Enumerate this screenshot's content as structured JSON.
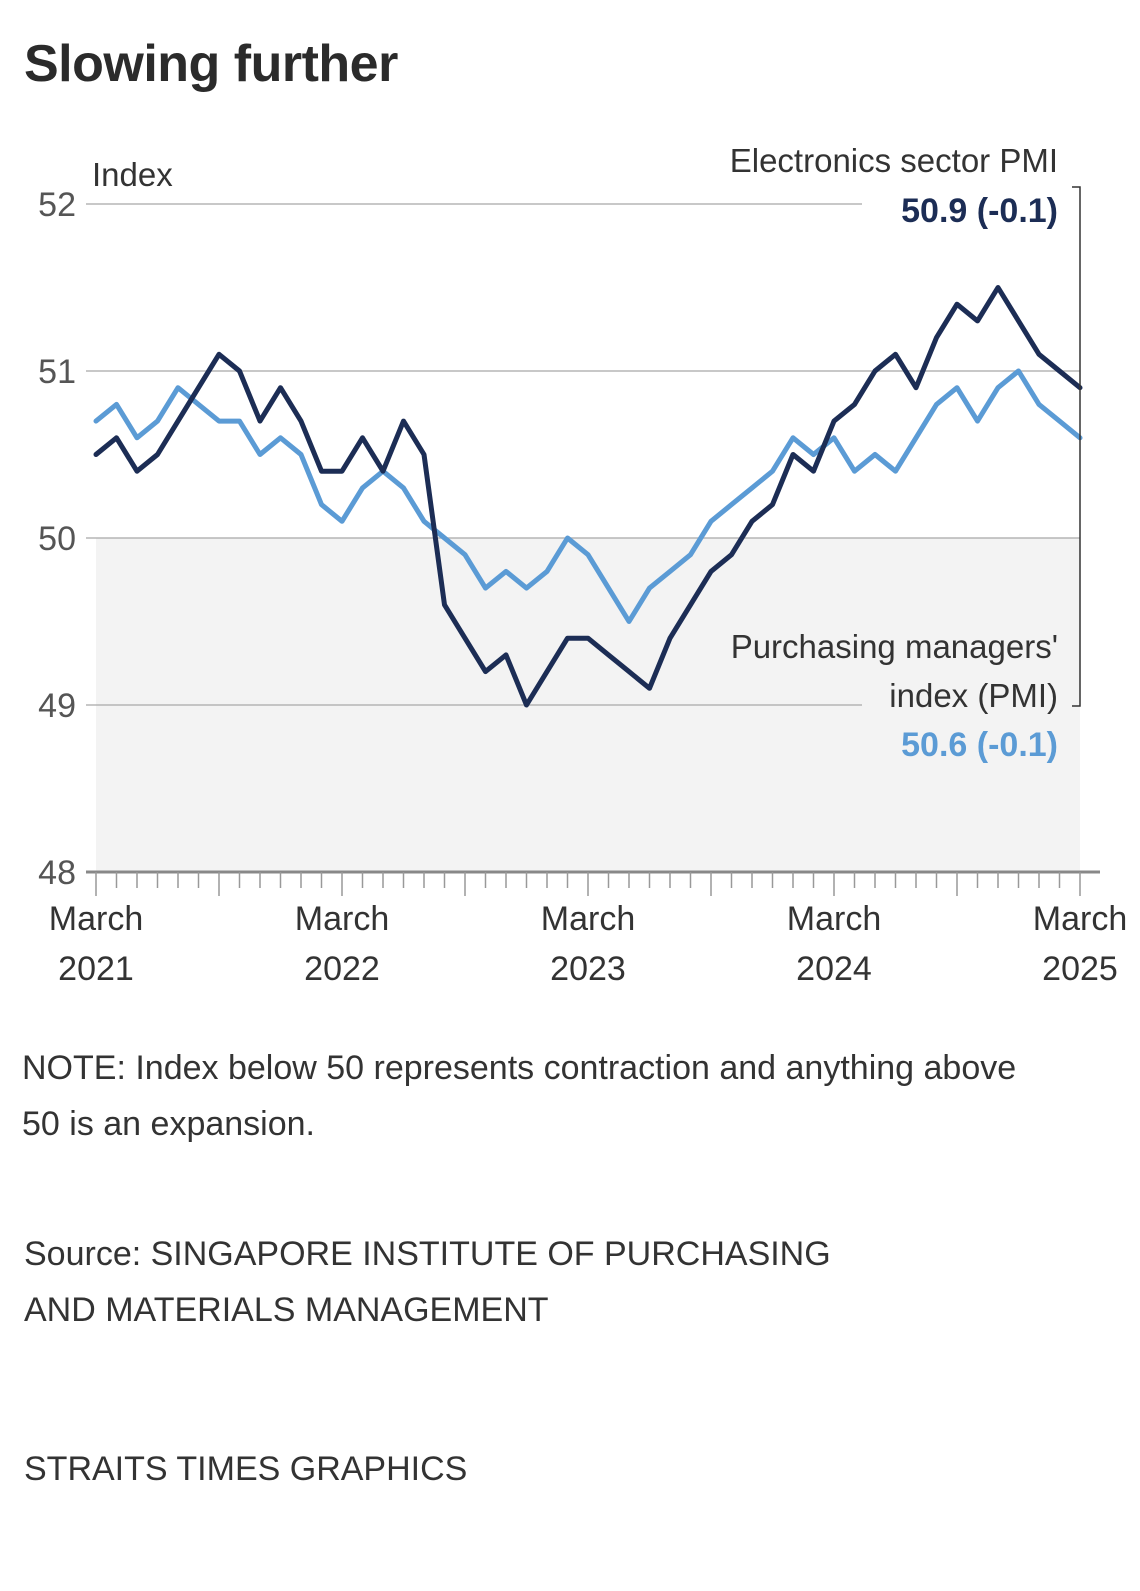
{
  "header": {
    "title": "Slowing further"
  },
  "chart_data": {
    "type": "line",
    "title": "Slowing further",
    "ylabel": "Index",
    "xlabel": "",
    "ylim": [
      48,
      52
    ],
    "yticks": [
      48,
      49,
      50,
      51,
      52
    ],
    "grid": true,
    "shaded_region": {
      "from": 48,
      "to": 50,
      "meaning": "contraction"
    },
    "x": [
      "Mar 2021",
      "Apr 2021",
      "May 2021",
      "Jun 2021",
      "Jul 2021",
      "Aug 2021",
      "Sep 2021",
      "Oct 2021",
      "Nov 2021",
      "Dec 2021",
      "Jan 2022",
      "Feb 2022",
      "Mar 2022",
      "Apr 2022",
      "May 2022",
      "Jun 2022",
      "Jul 2022",
      "Aug 2022",
      "Sep 2022",
      "Oct 2022",
      "Nov 2022",
      "Dec 2022",
      "Jan 2023",
      "Feb 2023",
      "Mar 2023",
      "Apr 2023",
      "May 2023",
      "Jun 2023",
      "Jul 2023",
      "Aug 2023",
      "Sep 2023",
      "Oct 2023",
      "Nov 2023",
      "Dec 2023",
      "Jan 2024",
      "Feb 2024",
      "Mar 2024",
      "Apr 2024",
      "May 2024",
      "Jun 2024",
      "Jul 2024",
      "Aug 2024",
      "Sep 2024",
      "Oct 2024",
      "Nov 2024",
      "Dec 2024",
      "Jan 2025",
      "Feb 2025",
      "Mar 2025"
    ],
    "xtick_labels": [
      {
        "index": 0,
        "line1": "March",
        "line2": "2021"
      },
      {
        "index": 12,
        "line1": "March",
        "line2": "2022"
      },
      {
        "index": 24,
        "line1": "March",
        "line2": "2023"
      },
      {
        "index": 36,
        "line1": "March",
        "line2": "2024"
      },
      {
        "index": 48,
        "line1": "March",
        "line2": "2025"
      }
    ],
    "series": [
      {
        "name": "Electronics sector PMI",
        "color": "#1c2d55",
        "latest_label": "50.9 (-0.1)",
        "values": [
          50.5,
          50.6,
          50.4,
          50.5,
          50.7,
          50.9,
          51.1,
          51.0,
          50.7,
          50.9,
          50.7,
          50.4,
          50.4,
          50.6,
          50.4,
          50.7,
          50.5,
          49.6,
          49.4,
          49.2,
          49.3,
          49.0,
          49.2,
          49.4,
          49.4,
          49.3,
          49.2,
          49.1,
          49.4,
          49.6,
          49.8,
          49.9,
          50.1,
          50.2,
          50.5,
          50.4,
          50.7,
          50.8,
          51.0,
          51.1,
          50.9,
          51.2,
          51.4,
          51.3,
          51.5,
          51.3,
          51.1,
          51.0,
          50.9
        ]
      },
      {
        "name": "Purchasing managers' index (PMI)",
        "label_line1": "Purchasing managers'",
        "label_line2": "index (PMI)",
        "color": "#5b9bd5",
        "latest_label": "50.6 (-0.1)",
        "values": [
          50.7,
          50.8,
          50.6,
          50.7,
          50.9,
          50.8,
          50.7,
          50.7,
          50.5,
          50.6,
          50.5,
          50.2,
          50.1,
          50.3,
          50.4,
          50.3,
          50.1,
          50.0,
          49.9,
          49.7,
          49.8,
          49.7,
          49.8,
          50.0,
          49.9,
          49.7,
          49.5,
          49.7,
          49.8,
          49.9,
          50.1,
          50.2,
          50.3,
          50.4,
          50.6,
          50.5,
          50.6,
          50.4,
          50.5,
          50.4,
          50.6,
          50.8,
          50.9,
          50.7,
          50.9,
          51.0,
          50.8,
          50.7,
          50.6
        ]
      }
    ],
    "legend_placement": "right (inline labels)"
  },
  "footer": {
    "note": "NOTE: Index below 50 represents contraction and anything above 50 is an expansion.",
    "source_line1": "Source: SINGAPORE INSTITUTE OF PURCHASING",
    "source_line2": "AND MATERIALS MANAGEMENT",
    "credit": "STRAITS TIMES GRAPHICS"
  }
}
